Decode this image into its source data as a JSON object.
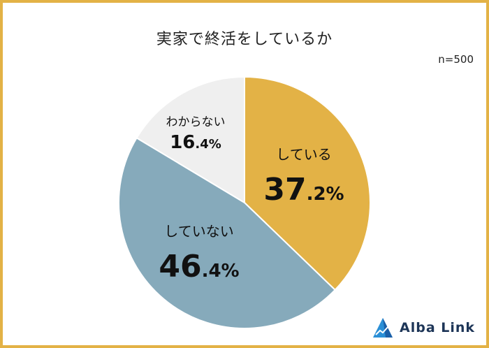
{
  "title": "実家で終活をしているか",
  "sample_size": "n=500",
  "logo": {
    "text": "Alba Link",
    "icon": "alba-link-logo-icon"
  },
  "colors": {
    "border": "#e3b246",
    "doing": "#e3b246",
    "not_doing": "#86aabb",
    "unknown": "#efefef"
  },
  "chart_data": {
    "type": "pie",
    "title": "実家で終活をしているか",
    "note": "n=500",
    "slices": [
      {
        "label": "している",
        "value": 37.2,
        "pct_int": "37",
        "pct_dec": ".2%",
        "color": "#e3b246"
      },
      {
        "label": "していない",
        "value": 46.4,
        "pct_int": "46",
        "pct_dec": ".4%",
        "color": "#86aabb"
      },
      {
        "label": "わからない",
        "value": 16.4,
        "pct_int": "16",
        "pct_dec": ".4%",
        "color": "#efefef"
      }
    ],
    "start_angle": "12 o'clock",
    "direction": "clockwise"
  }
}
